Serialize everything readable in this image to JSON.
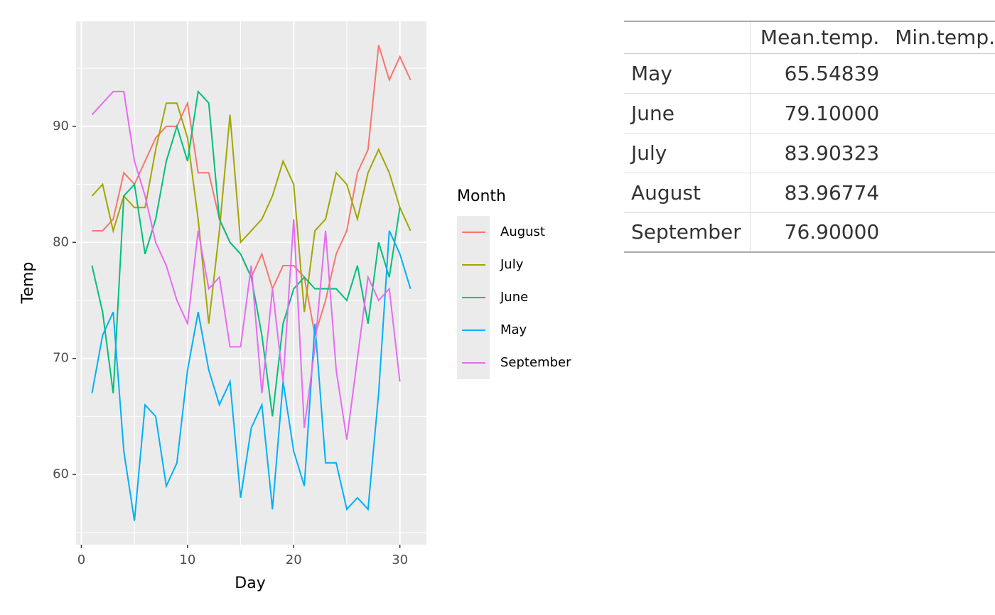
{
  "chart_data": {
    "type": "line",
    "x_label": "Day",
    "y_label": "Temp",
    "x": [
      1,
      2,
      3,
      4,
      5,
      6,
      7,
      8,
      9,
      10,
      11,
      12,
      13,
      14,
      15,
      16,
      17,
      18,
      19,
      20,
      21,
      22,
      23,
      24,
      25,
      26,
      27,
      28,
      29,
      30,
      31
    ],
    "series": [
      {
        "name": "August",
        "color": "#F8766D",
        "values": [
          81,
          81,
          82,
          86,
          85,
          87,
          89,
          90,
          90,
          92,
          86,
          86,
          82,
          80,
          79,
          77,
          79,
          76,
          78,
          78,
          77,
          72,
          75,
          79,
          81,
          86,
          88,
          97,
          94,
          96,
          94
        ]
      },
      {
        "name": "July",
        "color": "#A3A500",
        "values": [
          84,
          85,
          81,
          84,
          83,
          83,
          88,
          92,
          92,
          89,
          82,
          73,
          81,
          91,
          80,
          81,
          82,
          84,
          87,
          85,
          74,
          81,
          82,
          86,
          85,
          82,
          86,
          88,
          86,
          83,
          81
        ]
      },
      {
        "name": "June",
        "color": "#00BF7D",
        "values": [
          78,
          74,
          67,
          84,
          85,
          79,
          82,
          87,
          90,
          87,
          93,
          92,
          82,
          80,
          79,
          77,
          72,
          65,
          73,
          76,
          77,
          76,
          76,
          76,
          75,
          78,
          73,
          80,
          77,
          83,
          null
        ]
      },
      {
        "name": "May",
        "color": "#00B0F6",
        "values": [
          67,
          72,
          74,
          62,
          56,
          66,
          65,
          59,
          61,
          69,
          74,
          69,
          66,
          68,
          58,
          64,
          66,
          57,
          68,
          62,
          59,
          73,
          61,
          61,
          57,
          58,
          57,
          67,
          81,
          79,
          76
        ]
      },
      {
        "name": "September",
        "color": "#E76BF3",
        "values": [
          91,
          92,
          93,
          93,
          87,
          84,
          80,
          78,
          75,
          73,
          81,
          76,
          77,
          71,
          71,
          78,
          67,
          76,
          68,
          82,
          64,
          71,
          81,
          69,
          63,
          70,
          77,
          75,
          76,
          68,
          null
        ]
      }
    ],
    "legend_title": "Month",
    "legend_position": "right",
    "xlim": [
      -0.5,
      32.5
    ],
    "xticks": [
      0,
      10,
      20,
      30
    ],
    "minor_xticks": [
      5,
      15,
      25
    ],
    "ylim": [
      53.95,
      99.05
    ],
    "yticks": [
      60,
      70,
      80,
      90
    ],
    "minor_yticks": [
      55,
      65,
      75,
      85,
      95
    ],
    "grid": true
  },
  "table": {
    "header": [
      "Mean.temp.",
      "Min.temp."
    ],
    "rows": [
      [
        "May",
        "65.54839"
      ],
      [
        "June",
        "79.10000"
      ],
      [
        "July",
        "83.90323"
      ],
      [
        "August",
        "83.96774"
      ],
      [
        "September",
        "76.90000"
      ]
    ]
  }
}
